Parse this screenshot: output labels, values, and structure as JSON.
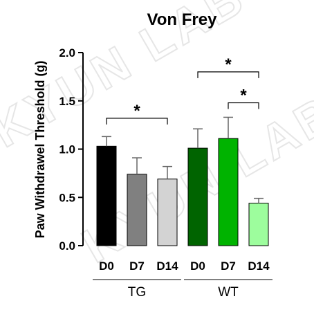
{
  "chart_data": {
    "type": "bar",
    "title": "Von Frey",
    "ylabel": "Paw Withdrawel Threshold (g)",
    "ylim": [
      0,
      2.0
    ],
    "yticks": [
      "0.0",
      "0.5",
      "1.0",
      "1.5",
      "2.0"
    ],
    "categories": [
      "D0",
      "D7",
      "D14",
      "D0",
      "D7",
      "D14"
    ],
    "values": [
      1.03,
      0.74,
      0.69,
      1.01,
      1.11,
      0.44
    ],
    "errors": [
      0.1,
      0.17,
      0.13,
      0.2,
      0.22,
      0.05
    ],
    "colors": [
      "#000000",
      "#808080",
      "#d3d3d3",
      "#006400",
      "#00b300",
      "#9dfd9d"
    ],
    "groups": [
      {
        "label": "TG",
        "indices": [
          0,
          1,
          2
        ]
      },
      {
        "label": "WT",
        "indices": [
          3,
          4,
          5
        ]
      }
    ],
    "significance": [
      {
        "from": 0,
        "to": 2,
        "label": "*",
        "y": 1.32
      },
      {
        "from": 3,
        "to": 5,
        "label": "*",
        "y": 1.8
      },
      {
        "from": 4,
        "to": 5,
        "label": "*",
        "y": 1.48
      }
    ],
    "grid": false,
    "legend": "none"
  },
  "watermark": "KYUN LAB"
}
